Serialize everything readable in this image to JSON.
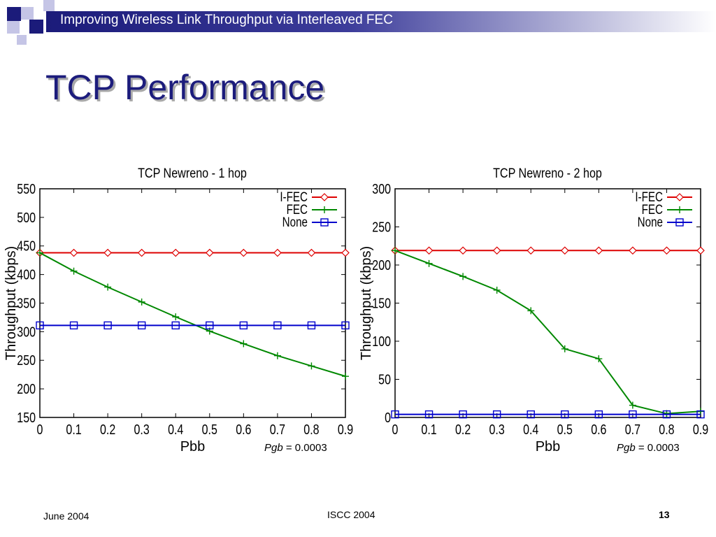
{
  "header": {
    "title": "Improving Wireless Link Throughput via Interleaved FEC"
  },
  "slide": {
    "title": "TCP Performance"
  },
  "footer": {
    "date": "June 2004",
    "conference": "ISCC 2004",
    "page": "13"
  },
  "annotations": [
    {
      "var": "Pgb",
      "text": " = 0.0003"
    },
    {
      "var": "Pgb",
      "text": " = 0.0003"
    }
  ],
  "colors": {
    "title": "#1c1c7c",
    "ifec": "#dd0000",
    "fec": "#008800",
    "none": "#0000cc"
  },
  "chart_data": [
    {
      "type": "line",
      "title": "TCP Newreno - 1 hop",
      "xlabel": "Pbb",
      "ylabel": "Throughput (kbps)",
      "xlim": [
        0,
        0.9
      ],
      "ylim": [
        150,
        550
      ],
      "xticks": [
        "0",
        "0.1",
        "0.2",
        "0.3",
        "0.4",
        "0.5",
        "0.6",
        "0.7",
        "0.8",
        "0.9"
      ],
      "yticks": [
        150,
        200,
        250,
        300,
        350,
        400,
        450,
        500,
        550
      ],
      "legend": "top-right",
      "x": [
        0,
        0.1,
        0.2,
        0.3,
        0.4,
        0.5,
        0.6,
        0.7,
        0.8,
        0.9
      ],
      "series": [
        {
          "name": "I-FEC",
          "color": "#dd0000",
          "marker": "diamond",
          "values": [
            438,
            438,
            438,
            438,
            438,
            438,
            438,
            438,
            438,
            438
          ]
        },
        {
          "name": "FEC",
          "color": "#008800",
          "marker": "plus",
          "values": [
            438,
            406,
            378,
            352,
            326,
            301,
            279,
            258,
            240,
            222
          ]
        },
        {
          "name": "None",
          "color": "#0000cc",
          "marker": "square",
          "values": [
            311,
            311,
            311,
            311,
            311,
            311,
            311,
            311,
            311,
            311
          ]
        }
      ]
    },
    {
      "type": "line",
      "title": "TCP Newreno - 2 hop",
      "xlabel": "Pbb",
      "ylabel": "Throughput (kbps)",
      "xlim": [
        0,
        0.9
      ],
      "ylim": [
        0,
        300
      ],
      "xticks": [
        "0",
        "0.1",
        "0.2",
        "0.3",
        "0.4",
        "0.5",
        "0.6",
        "0.7",
        "0.8",
        "0.9"
      ],
      "yticks": [
        0,
        50,
        100,
        150,
        200,
        250,
        300
      ],
      "legend": "top-right",
      "x": [
        0,
        0.1,
        0.2,
        0.3,
        0.4,
        0.5,
        0.6,
        0.7,
        0.8,
        0.9
      ],
      "series": [
        {
          "name": "I-FEC",
          "color": "#dd0000",
          "marker": "diamond",
          "values": [
            219,
            219,
            219,
            219,
            219,
            219,
            219,
            219,
            219,
            219
          ]
        },
        {
          "name": "FEC",
          "color": "#008800",
          "marker": "plus",
          "values": [
            219,
            202,
            185,
            167,
            140,
            90,
            77,
            16,
            5,
            8
          ]
        },
        {
          "name": "None",
          "color": "#0000cc",
          "marker": "square",
          "values": [
            4,
            4,
            4,
            4,
            4,
            4,
            4,
            4,
            4,
            4
          ]
        }
      ]
    }
  ]
}
